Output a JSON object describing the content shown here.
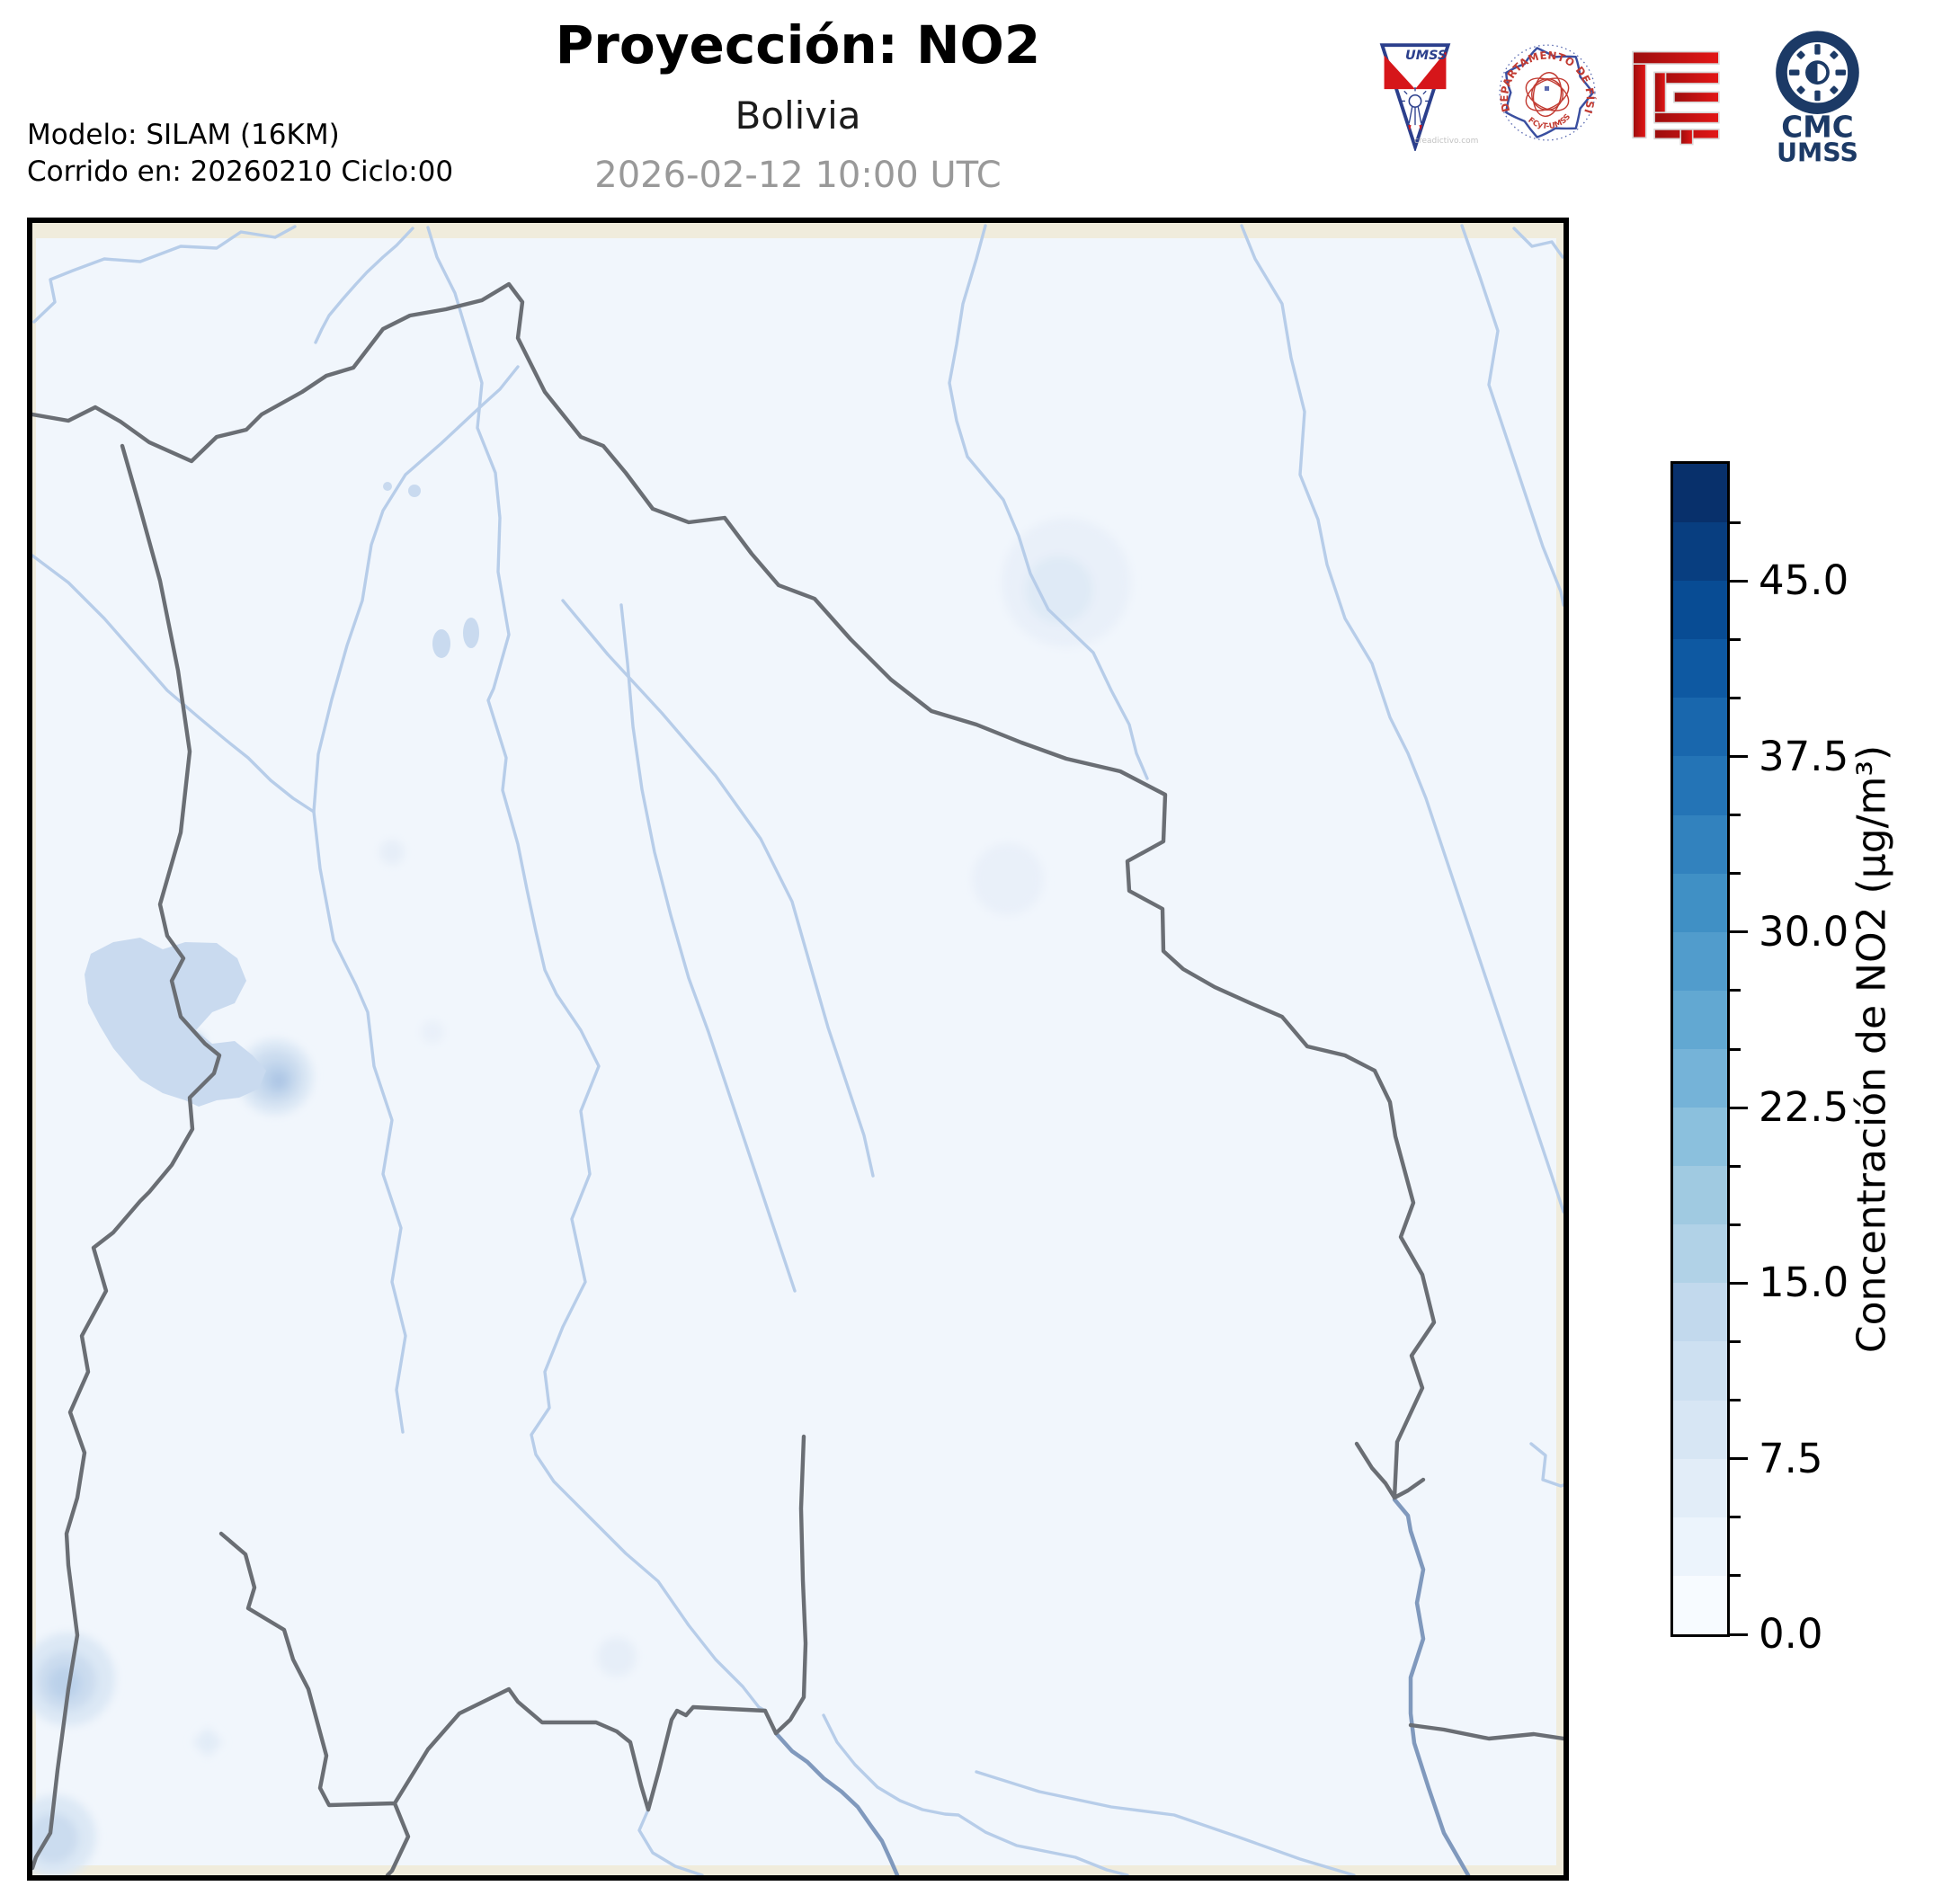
{
  "header": {
    "title": "Proyección: NO2",
    "subtitle": "Bolivia",
    "datetime": "2026-02-12 10:00 UTC",
    "model_line1": "Modelo: SILAM (16KM)",
    "model_line2": "Corrido en: 20260210 Ciclo:00"
  },
  "logos": {
    "umss_pennant": {
      "text": "UMSS",
      "watermark": "creadictivo.com"
    },
    "fisica_seal": {
      "arc_text": "DEPARTAMENTO DE FÍSICA",
      "bottom_text": "FCyT-UMSS"
    },
    "cmc": {
      "line1": "CMC",
      "line2": "UMSS"
    }
  },
  "colorbar": {
    "label": "Concentración de NO2 (µg/m³)",
    "unit": "µg/m³",
    "min": 0,
    "max": 50,
    "major_ticks": [
      {
        "value": 45.0,
        "label": "45.0"
      },
      {
        "value": 37.5,
        "label": "37.5"
      },
      {
        "value": 30.0,
        "label": "30.0"
      },
      {
        "value": 22.5,
        "label": "22.5"
      },
      {
        "value": 15.0,
        "label": "15.0"
      },
      {
        "value": 7.5,
        "label": "7.5"
      },
      {
        "value": 0.0,
        "label": "0.0"
      }
    ],
    "minor_ticks": [
      2.5,
      5,
      10,
      12.5,
      17.5,
      20,
      25,
      27.5,
      32.5,
      35,
      40,
      42.5,
      47.5
    ],
    "segments_top_to_bottom": [
      "#08306b",
      "#083e80",
      "#084c94",
      "#0e59a2",
      "#1967ad",
      "#2474b6",
      "#3282be",
      "#4090c5",
      "#519ccc",
      "#62a8d2",
      "#75b3d8",
      "#8bc0dd",
      "#a0cae1",
      "#b1d2e7",
      "#c2d9ed",
      "#cde0f1",
      "#d7e6f4",
      "#e2edf8",
      "#ecf4fc",
      "#f7fbff"
    ]
  },
  "map_colors": {
    "outside-land": "#f0ecdc",
    "data-fill": "#f1f6fc",
    "border": "#6a6e74",
    "river": "#b7cde9",
    "major-river": "#8099bd",
    "lake": "#c9daef"
  }
}
